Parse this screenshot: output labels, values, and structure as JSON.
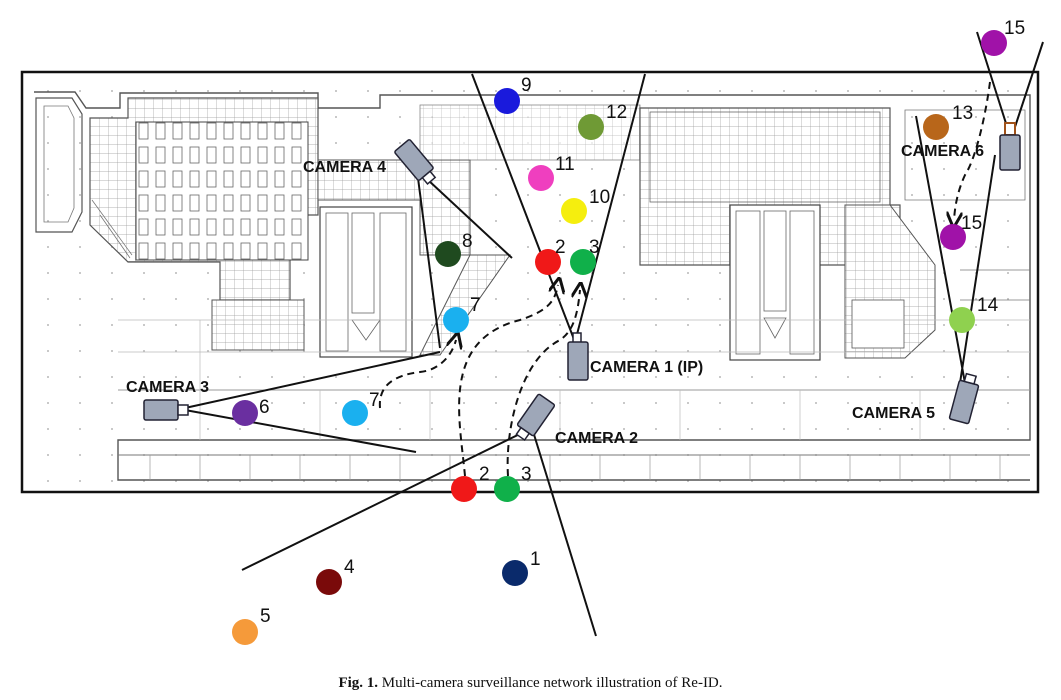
{
  "caption": {
    "label": "Fig. 1.",
    "text": " Multi-camera surveillance network illustration of Re-ID."
  },
  "cameras": [
    {
      "id": "camera-1",
      "label": "CAMERA 1 (IP)"
    },
    {
      "id": "camera-2",
      "label": "CAMERA 2"
    },
    {
      "id": "camera-3",
      "label": "CAMERA 3"
    },
    {
      "id": "camera-4",
      "label": "CAMERA 4"
    },
    {
      "id": "camera-5",
      "label": "CAMERA 5"
    },
    {
      "id": "camera-6",
      "label": "CAMERA 6"
    }
  ],
  "people": [
    {
      "label": "1",
      "color": "#0a2a6b"
    },
    {
      "label": "2",
      "color": "#f01818"
    },
    {
      "label": "3",
      "color": "#10b04a"
    },
    {
      "label": "4",
      "color": "#7a0a0a"
    },
    {
      "label": "5",
      "color": "#f59a3a"
    },
    {
      "label": "6",
      "color": "#6a2fa0"
    },
    {
      "label": "7",
      "color": "#1ab0ef"
    },
    {
      "label": "7",
      "color": "#1ab0ef"
    },
    {
      "label": "8",
      "color": "#1f4a1f"
    },
    {
      "label": "9",
      "color": "#1a1adc"
    },
    {
      "label": "10",
      "color": "#f5ee0e"
    },
    {
      "label": "11",
      "color": "#ef3fbf"
    },
    {
      "label": "12",
      "color": "#6f9a35"
    },
    {
      "label": "2",
      "color": "#f01818"
    },
    {
      "label": "3",
      "color": "#10b04a"
    },
    {
      "label": "13",
      "color": "#b8661a"
    },
    {
      "label": "15",
      "color": "#a012a8"
    },
    {
      "label": "15",
      "color": "#a012a8"
    },
    {
      "label": "14",
      "color": "#8fd14f"
    }
  ]
}
